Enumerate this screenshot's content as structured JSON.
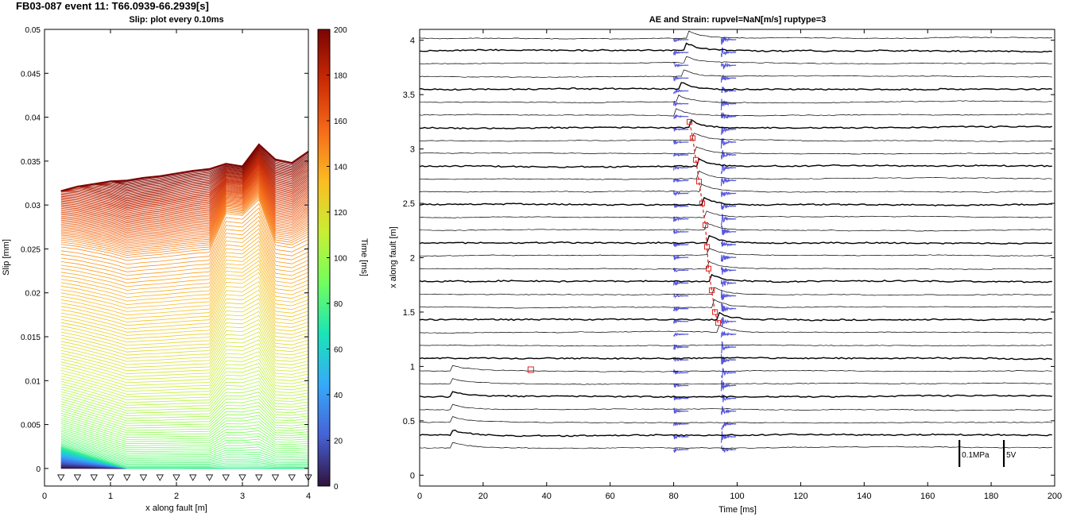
{
  "figure_title": "FB03-087 event 11: T66.0939-66.2939[s]",
  "chart_data": [
    {
      "type": "line",
      "title": "Slip: plot every 0.10ms",
      "xlabel": "x along fault [m]",
      "ylabel": "Slip [mm]",
      "xlim": [
        0,
        4
      ],
      "ylim": [
        -0.002,
        0.05
      ],
      "xticks": [
        "0",
        "1",
        "2",
        "3",
        "4"
      ],
      "yticks": [
        "0",
        "0.005",
        "0.01",
        "0.015",
        "0.02",
        "0.025",
        "0.03",
        "0.035",
        "0.04",
        "0.045",
        "0.05"
      ],
      "grid": false,
      "x": [
        0.25,
        0.5,
        0.75,
        1.0,
        1.25,
        1.5,
        1.75,
        2.0,
        2.25,
        2.5,
        2.75,
        3.0,
        3.25,
        3.5,
        3.75,
        4.0
      ],
      "final_slip": [
        0.0316,
        0.0321,
        0.0324,
        0.0327,
        0.0328,
        0.0331,
        0.0333,
        0.0336,
        0.0339,
        0.0341,
        0.0347,
        0.0344,
        0.0369,
        0.0352,
        0.0348,
        0.0361
      ],
      "sensor_x": [
        0.25,
        0.5,
        0.75,
        1.0,
        1.25,
        1.5,
        1.75,
        2.0,
        2.25,
        2.5,
        2.75,
        3.0,
        3.25,
        3.5,
        3.75,
        4.0
      ],
      "sensor_y": -0.001,
      "colorbar": {
        "label": "Time [ms]",
        "range": [
          0,
          200
        ],
        "ticks": [
          "0",
          "20",
          "40",
          "60",
          "80",
          "100",
          "120",
          "140",
          "160",
          "180",
          "200"
        ],
        "colormap": [
          "#30123b",
          "#4662d7",
          "#36aaf9",
          "#1ae4b6",
          "#72fe5e",
          "#c7ef34",
          "#fabd22",
          "#f66b19",
          "#ca2a04",
          "#7a0403"
        ]
      }
    },
    {
      "type": "line",
      "title": "AE and Strain: rupvel=NaN[m/s] ruptype=3",
      "xlabel": "Time [ms]",
      "ylabel": "x along fault [m]",
      "xlim": [
        0,
        200
      ],
      "ylim": [
        -0.1,
        4.1
      ],
      "xticks": [
        "0",
        "20",
        "40",
        "60",
        "80",
        "100",
        "120",
        "140",
        "160",
        "180",
        "200"
      ],
      "yticks": [
        "0",
        "0.5",
        "1",
        "1.5",
        "2",
        "2.5",
        "3",
        "3.5",
        "4"
      ],
      "grid": false,
      "trace_count": 33,
      "rupture_onset": {
        "x": [
          3.25,
          3.1,
          2.9,
          2.7,
          2.5,
          2.3,
          2.1,
          1.9,
          1.7,
          1.5,
          1.4
        ],
        "time_ms": [
          85,
          86,
          87,
          88,
          89,
          90,
          90.5,
          91,
          92,
          93,
          94
        ]
      },
      "ae_times_ms": [
        80,
        95
      ],
      "marker": {
        "time_ms": 35,
        "x": 0.97
      },
      "scale_bars": [
        {
          "label": "0.1MPa",
          "time_ms": 170
        },
        {
          "label": "5V",
          "time_ms": 184
        }
      ],
      "colors": {
        "strain": "#000000",
        "ae": "#3a3ad8",
        "rupture": "#e02020"
      }
    }
  ]
}
